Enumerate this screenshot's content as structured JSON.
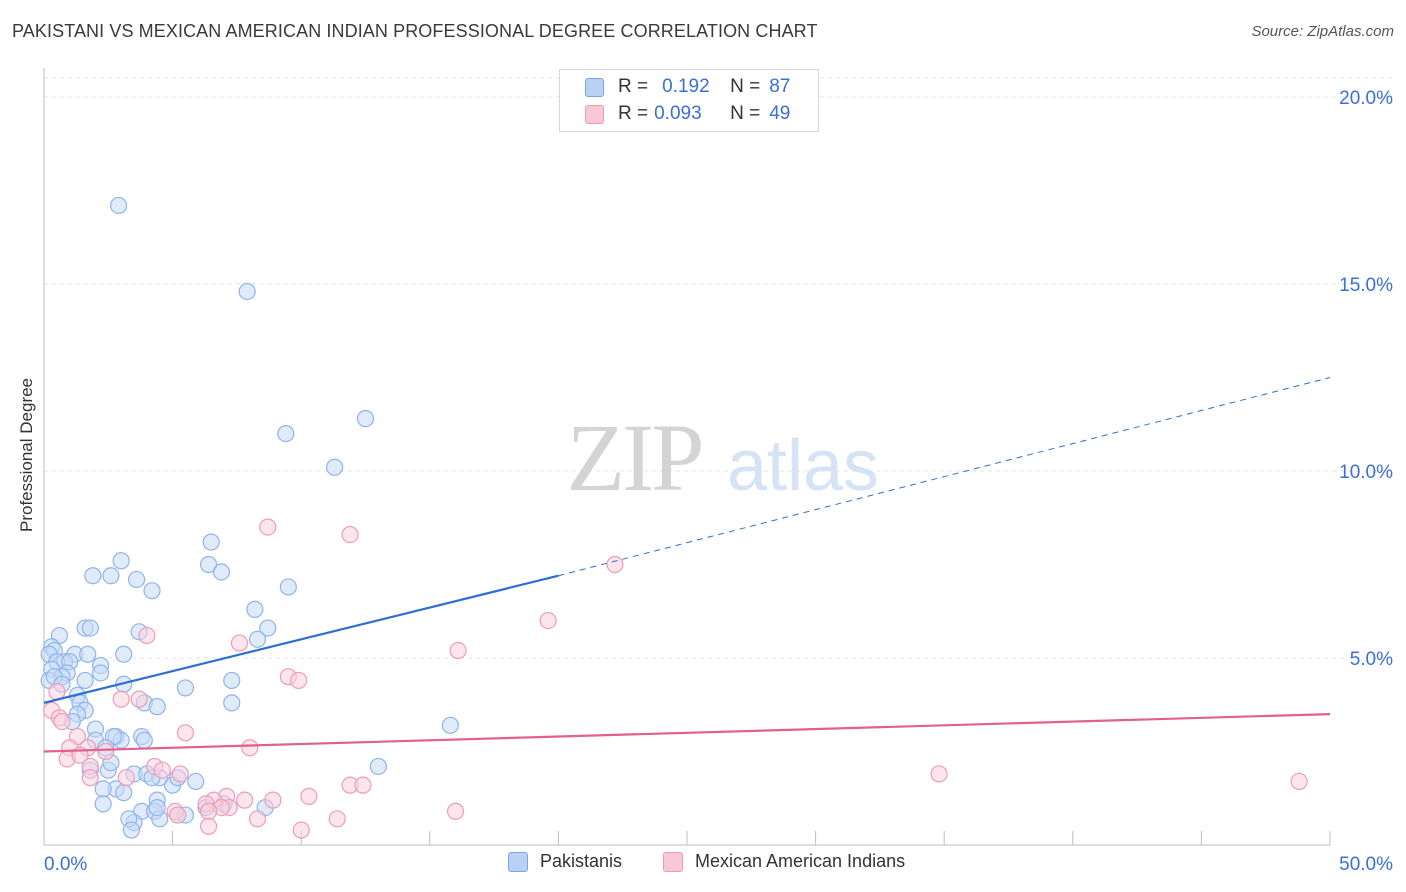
{
  "title": "PAKISTANI VS MEXICAN AMERICAN INDIAN PROFESSIONAL DEGREE CORRELATION CHART",
  "source": "Source: ZipAtlas.com",
  "watermark": {
    "zip": "ZIP",
    "atlas": "atlas"
  },
  "legend_top": {
    "rows": [
      {
        "r_key": "R =",
        "r_val": "0.192",
        "n_key": "N =",
        "n_val": "87",
        "color": "#7aa6e6",
        "fill": "#b9d1f4"
      },
      {
        "r_key": "R =",
        "r_val": "0.093",
        "n_key": "N =",
        "n_val": "49",
        "color": "#ef9ab6",
        "fill": "#f8c8d7"
      }
    ]
  },
  "legend_bottom": [
    {
      "label": "Pakistanis",
      "color": "#7aa6e6",
      "fill": "#b9d1f4"
    },
    {
      "label": "Mexican American Indians",
      "color": "#ef9ab6",
      "fill": "#f8c8d7"
    }
  ],
  "colors": {
    "blue_point": "#8fb4ea",
    "blue_fill": "#c7daf6",
    "blue_line": "#2e6fd0",
    "pink_point": "#ee9cb8",
    "pink_fill": "#f9d0de",
    "pink_line": "#e0608e",
    "tick_text": "#3b6fd4",
    "grid": "#e3e3e3"
  },
  "chart_data": {
    "type": "scatter",
    "title": "PAKISTANI VS MEXICAN AMERICAN INDIAN PROFESSIONAL DEGREE CORRELATION CHART",
    "xlabel": "",
    "ylabel": "Professional Degree",
    "xlim": [
      0,
      50
    ],
    "ylim": [
      0,
      20
    ],
    "x_tick_labels": [
      {
        "value": 0,
        "label": "0.0%"
      },
      {
        "value": 50,
        "label": "50.0%"
      }
    ],
    "y_tick_labels": [
      {
        "value": 5,
        "label": "5.0%"
      },
      {
        "value": 10,
        "label": "10.0%"
      },
      {
        "value": 15,
        "label": "15.0%"
      },
      {
        "value": 20,
        "label": "20.0%"
      }
    ],
    "x_minor_ticks": [
      0,
      5,
      10,
      15,
      20,
      25,
      30,
      35,
      40,
      45,
      50
    ],
    "grid": true,
    "legend_position": "top-center",
    "series": [
      {
        "name": "Pakistanis",
        "points": [
          [
            2.9,
            17.1
          ],
          [
            7.9,
            14.8
          ],
          [
            9.4,
            11.0
          ],
          [
            11.3,
            10.1
          ],
          [
            12.5,
            11.4
          ],
          [
            6.5,
            8.1
          ],
          [
            3.0,
            7.6
          ],
          [
            2.6,
            7.2
          ],
          [
            1.9,
            7.2
          ],
          [
            3.6,
            7.1
          ],
          [
            4.2,
            6.8
          ],
          [
            6.4,
            7.5
          ],
          [
            6.9,
            7.3
          ],
          [
            9.5,
            6.9
          ],
          [
            8.2,
            6.3
          ],
          [
            8.7,
            5.8
          ],
          [
            8.3,
            5.5
          ],
          [
            3.7,
            5.7
          ],
          [
            1.6,
            5.8
          ],
          [
            1.8,
            5.8
          ],
          [
            0.6,
            5.6
          ],
          [
            0.3,
            5.3
          ],
          [
            0.4,
            5.2
          ],
          [
            0.2,
            5.1
          ],
          [
            1.2,
            5.1
          ],
          [
            1.7,
            5.1
          ],
          [
            3.1,
            5.1
          ],
          [
            0.8,
            4.9
          ],
          [
            2.2,
            4.8
          ],
          [
            0.5,
            4.9
          ],
          [
            1.0,
            4.9
          ],
          [
            0.3,
            4.7
          ],
          [
            0.9,
            4.6
          ],
          [
            2.2,
            4.6
          ],
          [
            0.7,
            4.5
          ],
          [
            0.2,
            4.4
          ],
          [
            0.4,
            4.5
          ],
          [
            1.6,
            4.4
          ],
          [
            0.7,
            4.3
          ],
          [
            3.1,
            4.3
          ],
          [
            7.3,
            4.4
          ],
          [
            5.5,
            4.2
          ],
          [
            1.3,
            4.0
          ],
          [
            1.4,
            3.8
          ],
          [
            3.9,
            3.8
          ],
          [
            7.3,
            3.8
          ],
          [
            4.4,
            3.7
          ],
          [
            1.6,
            3.6
          ],
          [
            1.3,
            3.5
          ],
          [
            1.1,
            3.3
          ],
          [
            15.8,
            3.2
          ],
          [
            2.0,
            3.1
          ],
          [
            2.8,
            2.9
          ],
          [
            3.0,
            2.8
          ],
          [
            2.7,
            2.9
          ],
          [
            3.8,
            2.9
          ],
          [
            2.0,
            2.8
          ],
          [
            2.4,
            2.6
          ],
          [
            3.9,
            2.8
          ],
          [
            13.0,
            2.1
          ],
          [
            1.8,
            2.0
          ],
          [
            3.5,
            1.9
          ],
          [
            4.0,
            1.9
          ],
          [
            4.5,
            1.8
          ],
          [
            2.5,
            2.0
          ],
          [
            5.0,
            1.6
          ],
          [
            4.2,
            1.8
          ],
          [
            5.9,
            1.7
          ],
          [
            2.8,
            1.5
          ],
          [
            3.1,
            1.4
          ],
          [
            2.3,
            1.5
          ],
          [
            4.4,
            1.2
          ],
          [
            2.3,
            1.1
          ],
          [
            7.0,
            1.1
          ],
          [
            8.6,
            1.0
          ],
          [
            3.8,
            0.9
          ],
          [
            4.3,
            0.9
          ],
          [
            5.2,
            0.8
          ],
          [
            4.5,
            0.7
          ],
          [
            3.5,
            0.6
          ],
          [
            3.3,
            0.7
          ],
          [
            3.4,
            0.4
          ],
          [
            5.5,
            0.8
          ],
          [
            6.3,
            1.0
          ],
          [
            4.4,
            1.0
          ],
          [
            2.6,
            2.2
          ],
          [
            5.2,
            1.8
          ]
        ]
      },
      {
        "name": "Mexican American Indians",
        "points": [
          [
            8.7,
            8.5
          ],
          [
            11.9,
            8.3
          ],
          [
            22.2,
            7.5
          ],
          [
            19.6,
            6.0
          ],
          [
            16.1,
            5.2
          ],
          [
            4.0,
            5.6
          ],
          [
            7.6,
            5.4
          ],
          [
            9.5,
            4.5
          ],
          [
            9.9,
            4.4
          ],
          [
            0.5,
            4.1
          ],
          [
            3.0,
            3.9
          ],
          [
            3.7,
            3.9
          ],
          [
            0.3,
            3.6
          ],
          [
            0.6,
            3.4
          ],
          [
            0.7,
            3.3
          ],
          [
            5.5,
            3.0
          ],
          [
            1.3,
            2.9
          ],
          [
            1.0,
            2.6
          ],
          [
            1.7,
            2.6
          ],
          [
            8.0,
            2.6
          ],
          [
            2.4,
            2.5
          ],
          [
            0.9,
            2.3
          ],
          [
            1.4,
            2.4
          ],
          [
            1.8,
            2.1
          ],
          [
            4.3,
            2.1
          ],
          [
            1.8,
            1.8
          ],
          [
            5.3,
            1.9
          ],
          [
            4.6,
            2.0
          ],
          [
            3.2,
            1.8
          ],
          [
            34.8,
            1.9
          ],
          [
            48.8,
            1.7
          ],
          [
            11.9,
            1.6
          ],
          [
            12.4,
            1.6
          ],
          [
            10.3,
            1.3
          ],
          [
            8.9,
            1.2
          ],
          [
            7.1,
            1.3
          ],
          [
            7.8,
            1.2
          ],
          [
            6.6,
            1.2
          ],
          [
            6.3,
            1.1
          ],
          [
            7.2,
            1.0
          ],
          [
            6.9,
            1.0
          ],
          [
            5.1,
            0.9
          ],
          [
            6.4,
            0.9
          ],
          [
            5.2,
            0.8
          ],
          [
            16.0,
            0.9
          ],
          [
            8.3,
            0.7
          ],
          [
            11.4,
            0.7
          ],
          [
            6.4,
            0.5
          ],
          [
            10.0,
            0.4
          ]
        ]
      }
    ],
    "trendlines": [
      {
        "series": "Pakistanis",
        "from": [
          0,
          3.8
        ],
        "to": [
          20,
          7.2
        ],
        "dashed_to": [
          50,
          12.5
        ]
      },
      {
        "series": "Mexican American Indians",
        "from": [
          0,
          2.5
        ],
        "to": [
          50,
          3.5
        ]
      }
    ]
  }
}
